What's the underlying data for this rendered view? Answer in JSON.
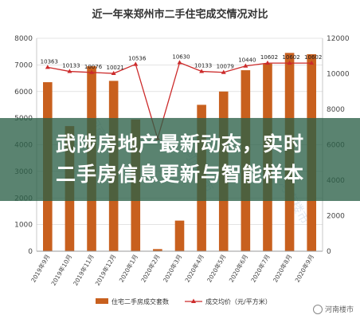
{
  "chart_data": {
    "type": "bar",
    "title": "近一年来郑州市二手住宅成交情况对比",
    "categories": [
      "2019年9月",
      "2019年10月",
      "2019年11月",
      "2019年12月",
      "2020年1月",
      "2020年2月",
      "2020年3月",
      "2020年4月",
      "2020年5月",
      "2020年6月",
      "2020年7月",
      "2020年8月",
      "2020年9月"
    ],
    "series": [
      {
        "name": "住宅二手房成交套数",
        "kind": "bar",
        "axis": "left",
        "color": "#c8601e",
        "values": [
          6350,
          4700,
          6950,
          6400,
          4950,
          80,
          1150,
          5500,
          6000,
          6800,
          7050,
          7450,
          7400
        ]
      },
      {
        "name": "成交均价（元/平方米）",
        "kind": "line",
        "axis": "right",
        "color": "#cc2b2b",
        "values": [
          10363,
          10133,
          10076,
          10021,
          10536,
          6350,
          10630,
          10133,
          10079,
          10440,
          10602,
          10602,
          10602
        ],
        "labels": [
          "10363",
          "10133",
          "10076",
          "10021",
          "10536",
          "",
          "10630",
          "10133",
          "10079",
          "10440",
          "10602",
          "10602",
          "10602"
        ]
      }
    ],
    "ylim_left": [
      0,
      8000
    ],
    "yticks_left": [
      0,
      1000,
      2000,
      3000,
      4000,
      5000,
      6000,
      7000,
      8000
    ],
    "ylim_right": [
      0,
      12000
    ],
    "yticks_right": [
      0,
      2000,
      4000,
      6000,
      8000,
      10000,
      12000
    ],
    "legend_position": "bottom",
    "watermark": "河南楼市"
  },
  "overlay": {
    "line1": "武陟房地产最新动态，实时",
    "line2": "二手房信息更新与智能样本"
  },
  "brand": {
    "text": "河南楼市"
  }
}
